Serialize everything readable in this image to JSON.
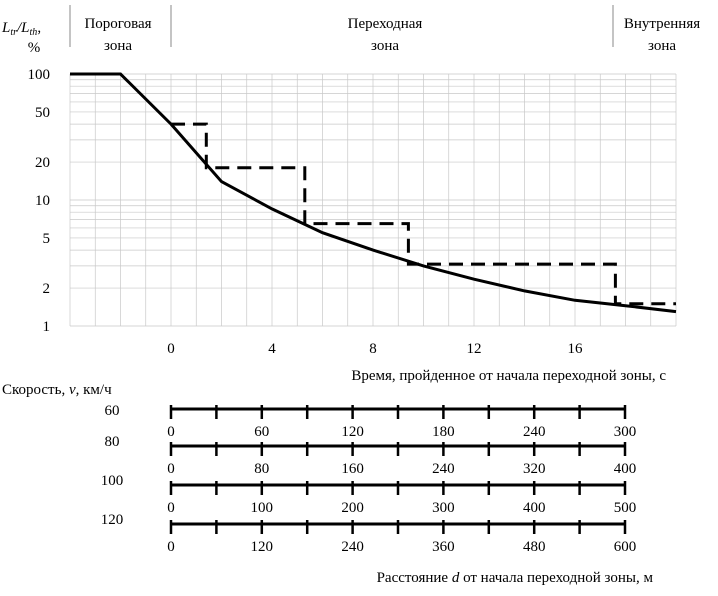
{
  "header": {
    "ylabel_main": "L",
    "ylabel_sub1": "tr",
    "ylabel_slash": "/L",
    "ylabel_sub2": "th",
    "ylabel_comma": ",",
    "ylabel_unit": "%",
    "zones": [
      {
        "line1": "Пороговая",
        "line2": "зона"
      },
      {
        "line1": "Переходная",
        "line2": "зона"
      },
      {
        "line1": "Внутренняя",
        "line2": "зона"
      }
    ]
  },
  "chart_data": {
    "type": "line",
    "xlabel": "Время, пройденное от начала переходной зоны, с",
    "x_ticks": [
      0,
      4,
      8,
      12,
      16
    ],
    "xlim": [
      -4,
      20
    ],
    "y_scale": "log",
    "ylim": [
      1,
      100
    ],
    "y_ticks": [
      1,
      2,
      5,
      10,
      20,
      50,
      100
    ],
    "grid": true,
    "series": [
      {
        "style": "solid",
        "points": [
          [
            -4,
            100
          ],
          [
            -2,
            100
          ],
          [
            0,
            40
          ],
          [
            2,
            14
          ],
          [
            4,
            8.5
          ],
          [
            6,
            5.5
          ],
          [
            8,
            4.0
          ],
          [
            10,
            3.0
          ],
          [
            12,
            2.35
          ],
          [
            14,
            1.9
          ],
          [
            16,
            1.6
          ],
          [
            18,
            1.45
          ],
          [
            20,
            1.3
          ]
        ]
      },
      {
        "style": "dashed",
        "points": [
          [
            0,
            40
          ],
          [
            1.4,
            40
          ],
          [
            1.4,
            18
          ],
          [
            5.3,
            18
          ],
          [
            5.3,
            6.5
          ],
          [
            9.4,
            6.5
          ],
          [
            9.4,
            3.1
          ],
          [
            17.6,
            3.1
          ],
          [
            17.6,
            1.5
          ],
          [
            20,
            1.5
          ]
        ]
      }
    ]
  },
  "speed_scales": {
    "title": "Скорость, ",
    "title_var": "v",
    "title_unit": ", км/ч",
    "xlabel_pre": "Расстояние ",
    "xlabel_var": "d",
    "xlabel_post": " от начала переходной зоны, м",
    "rows": [
      {
        "speed": "60",
        "labels": [
          "0",
          "60",
          "120",
          "180",
          "240",
          "300"
        ]
      },
      {
        "speed": "80",
        "labels": [
          "0",
          "80",
          "160",
          "240",
          "320",
          "400"
        ]
      },
      {
        "speed": "100",
        "labels": [
          "0",
          "100",
          "200",
          "300",
          "400",
          "500"
        ]
      },
      {
        "speed": "120",
        "labels": [
          "0",
          "120",
          "240",
          "360",
          "480",
          "600"
        ]
      }
    ]
  }
}
